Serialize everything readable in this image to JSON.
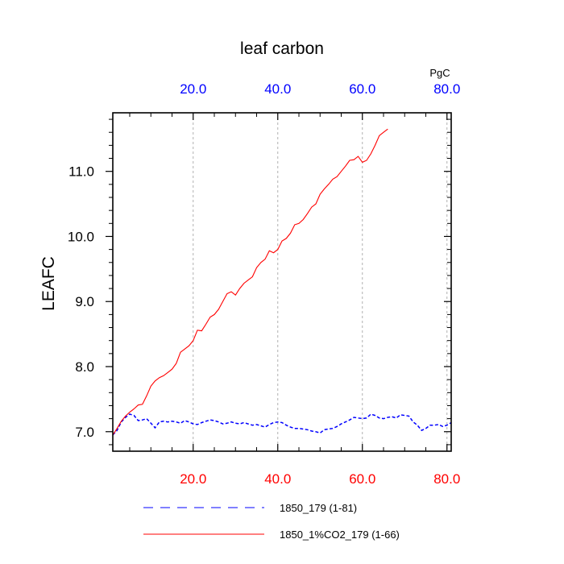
{
  "chart_data": {
    "type": "line",
    "title": "leaf carbon",
    "ylabel": "LEAFC",
    "units": "PgC",
    "xlim": [
      1,
      81
    ],
    "ylim": [
      6.7,
      11.9
    ],
    "x_ticks": [
      "20.0",
      "40.0",
      "60.0",
      "80.0"
    ],
    "x_tick_values": [
      20,
      40,
      60,
      80
    ],
    "y_ticks": [
      "7.0",
      "8.0",
      "9.0",
      "10.0",
      "11.0"
    ],
    "y_tick_values": [
      7,
      8,
      9,
      10,
      11
    ],
    "grid": "vertical dashed",
    "colors": {
      "top_axis": "#0000ff",
      "bottom_axis": "#ff0000",
      "frame": "#000000",
      "grid": "#b0b0b0"
    },
    "series": [
      {
        "name": "1850_179 (1-81)",
        "color": "#0000ff",
        "style": "dashed",
        "x": [
          1,
          2,
          3,
          4,
          5,
          6,
          7,
          8,
          9,
          10,
          11,
          12,
          13,
          14,
          15,
          16,
          17,
          18,
          19,
          20,
          21,
          22,
          23,
          24,
          25,
          26,
          27,
          28,
          29,
          30,
          31,
          32,
          33,
          34,
          35,
          36,
          37,
          38,
          39,
          40,
          41,
          42,
          43,
          44,
          45,
          46,
          47,
          48,
          49,
          50,
          51,
          52,
          53,
          54,
          55,
          56,
          57,
          58,
          59,
          60,
          61,
          62,
          63,
          64,
          65,
          66,
          67,
          68,
          69,
          70,
          71,
          72,
          73,
          74,
          75,
          76,
          77,
          78,
          79,
          80,
          81
        ],
        "values": [
          6.95,
          7.02,
          7.15,
          7.22,
          7.27,
          7.25,
          7.17,
          7.18,
          7.2,
          7.13,
          7.06,
          7.15,
          7.16,
          7.15,
          7.16,
          7.15,
          7.13,
          7.17,
          7.15,
          7.12,
          7.11,
          7.14,
          7.16,
          7.18,
          7.17,
          7.15,
          7.12,
          7.13,
          7.15,
          7.13,
          7.12,
          7.14,
          7.12,
          7.1,
          7.11,
          7.09,
          7.07,
          7.11,
          7.14,
          7.15,
          7.14,
          7.1,
          7.07,
          7.05,
          7.05,
          7.04,
          7.03,
          7.01,
          7.0,
          6.98,
          7.03,
          7.04,
          7.05,
          7.08,
          7.12,
          7.15,
          7.18,
          7.22,
          7.21,
          7.2,
          7.21,
          7.27,
          7.25,
          7.21,
          7.2,
          7.22,
          7.23,
          7.21,
          7.26,
          7.25,
          7.24,
          7.15,
          7.1,
          7.02,
          7.05,
          7.1,
          7.1,
          7.11,
          7.08,
          7.1,
          7.14
        ]
      },
      {
        "name": "1850_1%CO2_179 (1-66)",
        "color": "#ff0000",
        "style": "solid",
        "x": [
          1,
          2,
          3,
          4,
          5,
          6,
          7,
          8,
          9,
          10,
          11,
          12,
          13,
          14,
          15,
          16,
          17,
          18,
          19,
          20,
          21,
          22,
          23,
          24,
          25,
          26,
          27,
          28,
          29,
          30,
          31,
          32,
          33,
          34,
          35,
          36,
          37,
          38,
          39,
          40,
          41,
          42,
          43,
          44,
          45,
          46,
          47,
          48,
          49,
          50,
          51,
          52,
          53,
          54,
          55,
          56,
          57,
          58,
          59,
          60,
          61,
          62,
          63,
          64,
          65,
          66
        ],
        "values": [
          6.95,
          7.05,
          7.16,
          7.24,
          7.3,
          7.35,
          7.41,
          7.42,
          7.55,
          7.7,
          7.78,
          7.83,
          7.86,
          7.91,
          7.96,
          8.05,
          8.22,
          8.27,
          8.32,
          8.4,
          8.56,
          8.55,
          8.65,
          8.76,
          8.8,
          8.88,
          9.0,
          9.12,
          9.15,
          9.1,
          9.2,
          9.28,
          9.33,
          9.38,
          9.52,
          9.6,
          9.65,
          9.78,
          9.75,
          9.8,
          9.93,
          9.97,
          10.05,
          10.18,
          10.2,
          10.26,
          10.35,
          10.45,
          10.5,
          10.65,
          10.73,
          10.8,
          10.88,
          10.92,
          11.0,
          11.08,
          11.17,
          11.18,
          11.23,
          11.14,
          11.17,
          11.27,
          11.4,
          11.55,
          11.6,
          11.65
        ]
      }
    ]
  }
}
